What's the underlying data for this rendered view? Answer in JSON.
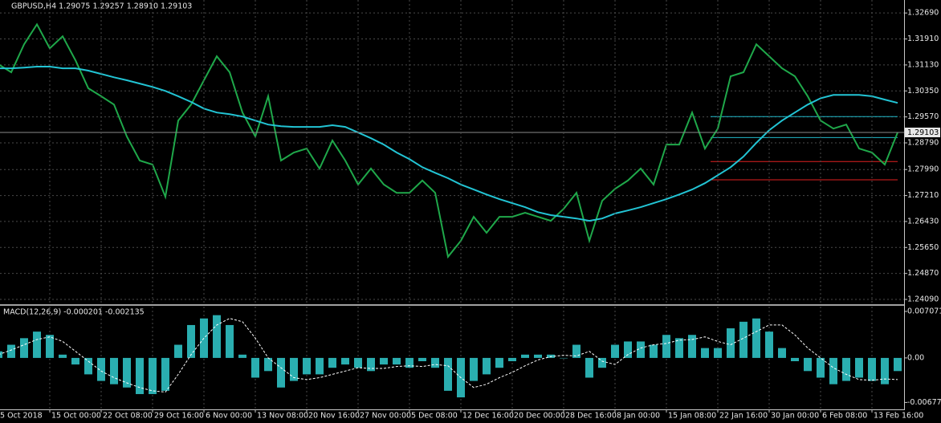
{
  "chart_data": [
    {
      "type": "line",
      "title": "GBPUSD,H4  1.29075 1.29257 1.28910 1.29103",
      "ylim": [
        1.2397,
        1.3308
      ],
      "yticks": [
        {
          "value": 1.3269,
          "label": "1.32690"
        },
        {
          "value": 1.3191,
          "label": "1.31910"
        },
        {
          "value": 1.3113,
          "label": "1.31130"
        },
        {
          "value": 1.3035,
          "label": "1.30350"
        },
        {
          "value": 1.2957,
          "label": "1.29570"
        },
        {
          "value": 1.2879,
          "label": "1.28790"
        },
        {
          "value": 1.2799,
          "label": "1.27990"
        },
        {
          "value": 1.2721,
          "label": "1.27210"
        },
        {
          "value": 1.2643,
          "label": "1.26430"
        },
        {
          "value": 1.2565,
          "label": "1.25650"
        },
        {
          "value": 1.2487,
          "label": "1.24870"
        },
        {
          "value": 1.2409,
          "label": "1.24090"
        }
      ],
      "grid": true,
      "current_price": 1.29103,
      "levels": [
        {
          "value": 1.2958,
          "color": "#20b8c8"
        },
        {
          "value": 1.2895,
          "color": "#20b8c8"
        },
        {
          "value": 1.2823,
          "color": "#e02020"
        },
        {
          "value": 1.2768,
          "color": "#e02020"
        }
      ],
      "series": [
        {
          "color": "#1fa84a",
          "values": [
            1.3115,
            1.3091,
            1.3175,
            1.3235,
            1.3163,
            1.3199,
            1.3127,
            1.3043,
            1.3019,
            1.2994,
            1.2898,
            1.2826,
            1.2814,
            1.2717,
            1.2946,
            1.2994,
            1.3067,
            1.3139,
            1.3091,
            1.297,
            1.2898,
            1.3019,
            1.2826,
            1.285,
            1.2862,
            1.2802,
            1.2886,
            1.2826,
            1.2754,
            1.2802,
            1.2754,
            1.2729,
            1.2729,
            1.2766,
            1.2729,
            1.2537,
            1.2585,
            1.2657,
            1.2609,
            1.2657,
            1.2657,
            1.2669,
            1.2657,
            1.2645,
            1.2681,
            1.2729,
            1.2585,
            1.2705,
            1.2741,
            1.2766,
            1.2802,
            1.2754,
            1.2874,
            1.2874,
            1.297,
            1.2862,
            1.2922,
            1.3079,
            1.3091,
            1.3175,
            1.3139,
            1.3103,
            1.3079,
            1.3019,
            1.2946,
            1.2922,
            1.2934,
            1.2862,
            1.285,
            1.2814,
            1.29103
          ]
        },
        {
          "color": "#22c4d4",
          "values": [
            1.3103,
            1.3103,
            1.3105,
            1.3108,
            1.3108,
            1.3103,
            1.3103,
            1.3096,
            1.3086,
            1.3076,
            1.3067,
            1.3057,
            1.3047,
            1.3035,
            1.3019,
            1.3002,
            1.2982,
            1.297,
            1.2965,
            1.2958,
            1.2946,
            1.2934,
            1.2929,
            1.2927,
            1.2927,
            1.2927,
            1.2932,
            1.2927,
            1.291,
            1.2893,
            1.2874,
            1.285,
            1.283,
            1.2806,
            1.2789,
            1.2773,
            1.2754,
            1.2739,
            1.2724,
            1.271,
            1.2698,
            1.2686,
            1.2671,
            1.2662,
            1.2657,
            1.2652,
            1.2645,
            1.2652,
            1.2667,
            1.2676,
            1.2686,
            1.2698,
            1.271,
            1.2724,
            1.2739,
            1.2758,
            1.2782,
            1.2806,
            1.2838,
            1.2879,
            1.2917,
            1.2946,
            1.297,
            1.2994,
            1.3013,
            1.3023,
            1.3023,
            1.3023,
            1.3019,
            1.3009,
            1.2999
          ]
        }
      ]
    },
    {
      "type": "bar",
      "title": "MACD(12,26,9) -0.000201 -0.002135",
      "ylim": [
        -0.0077,
        0.0078
      ],
      "yticks": [
        {
          "value": 0.007071,
          "label": "0.007071"
        },
        {
          "value": 0,
          "label": "0.00"
        },
        {
          "value": -0.006772,
          "label": "-0.006772"
        }
      ],
      "categories": [
        "5 Oct 2018",
        null,
        null,
        null,
        "15 Oct 00:00",
        null,
        null,
        null,
        "22 Oct 08:00",
        null,
        null,
        null,
        "29 Oct 16:00",
        null,
        null,
        null,
        "6 Nov 00:00",
        null,
        null,
        null,
        "13 Nov 08:00",
        null,
        null,
        null,
        "20 Nov 16:00",
        null,
        null,
        null,
        "27 Nov 00:00",
        null,
        null,
        null,
        "5 Dec 08:00",
        null,
        null,
        null,
        "12 Dec 16:00",
        null,
        null,
        null,
        "20 Dec 00:00",
        null,
        null,
        null,
        "28 Dec 16:00",
        null,
        null,
        null,
        "8 Jan 00:00",
        null,
        null,
        null,
        "15 Jan 08:00",
        null,
        null,
        null,
        "22 Jan 16:00",
        null,
        null,
        null,
        "30 Jan 00:00",
        null,
        null,
        null,
        "6 Feb 08:00",
        null,
        null,
        null,
        "13 Feb 16:00",
        null,
        null
      ],
      "series": [
        {
          "color": "#2aaeb0",
          "values": [
            0.001,
            0.002,
            0.003,
            0.004,
            0.0035,
            0.0005,
            -0.001,
            -0.0025,
            -0.0035,
            -0.004,
            -0.0045,
            -0.0055,
            -0.0055,
            -0.005,
            0.002,
            0.005,
            0.006,
            0.0065,
            0.005,
            0.0005,
            -0.003,
            -0.002,
            -0.0045,
            -0.0035,
            -0.0025,
            -0.0025,
            -0.0015,
            -0.001,
            -0.0015,
            -0.002,
            -0.001,
            -0.001,
            -0.0015,
            -0.0005,
            -0.0015,
            -0.005,
            -0.006,
            -0.0035,
            -0.0025,
            -0.0015,
            -0.0005,
            0.0005,
            0.0005,
            0.0005,
            0,
            0.002,
            -0.003,
            -0.0015,
            0.002,
            0.0025,
            0.0025,
            0.002,
            0.0035,
            0.003,
            0.0035,
            0.0015,
            0.0015,
            0.0045,
            0.0055,
            0.006,
            0.004,
            0.0015,
            -0.0005,
            -0.002,
            -0.003,
            -0.004,
            -0.0035,
            -0.003,
            -0.0035,
            -0.004,
            -0.002
          ]
        },
        {
          "type": "line",
          "color": "#ffffff",
          "values": [
            0.0005,
            0.0012,
            0.002,
            0.0028,
            0.0032,
            0.0025,
            0.001,
            -0.0005,
            -0.002,
            -0.003,
            -0.0038,
            -0.0045,
            -0.005,
            -0.0052,
            -0.0025,
            0.0005,
            0.003,
            0.005,
            0.006,
            0.0055,
            0.003,
            0,
            -0.0015,
            -0.003,
            -0.0033,
            -0.003,
            -0.0025,
            -0.002,
            -0.0015,
            -0.0016,
            -0.0016,
            -0.0013,
            -0.0012,
            -0.0013,
            -0.001,
            -0.0012,
            -0.003,
            -0.0045,
            -0.004,
            -0.003,
            -0.0022,
            -0.0012,
            -0.0003,
            0.0002,
            0.0004,
            0.0003,
            0.001,
            -0.0005,
            -0.001,
            0.0005,
            0.0015,
            0.002,
            0.0022,
            0.0027,
            0.0028,
            0.0032,
            0.0025,
            0.002,
            0.003,
            0.004,
            0.005,
            0.005,
            0.0035,
            0.0015,
            0,
            -0.0015,
            -0.0025,
            -0.0033,
            -0.0034,
            -0.0032,
            -0.0033
          ]
        }
      ]
    }
  ]
}
